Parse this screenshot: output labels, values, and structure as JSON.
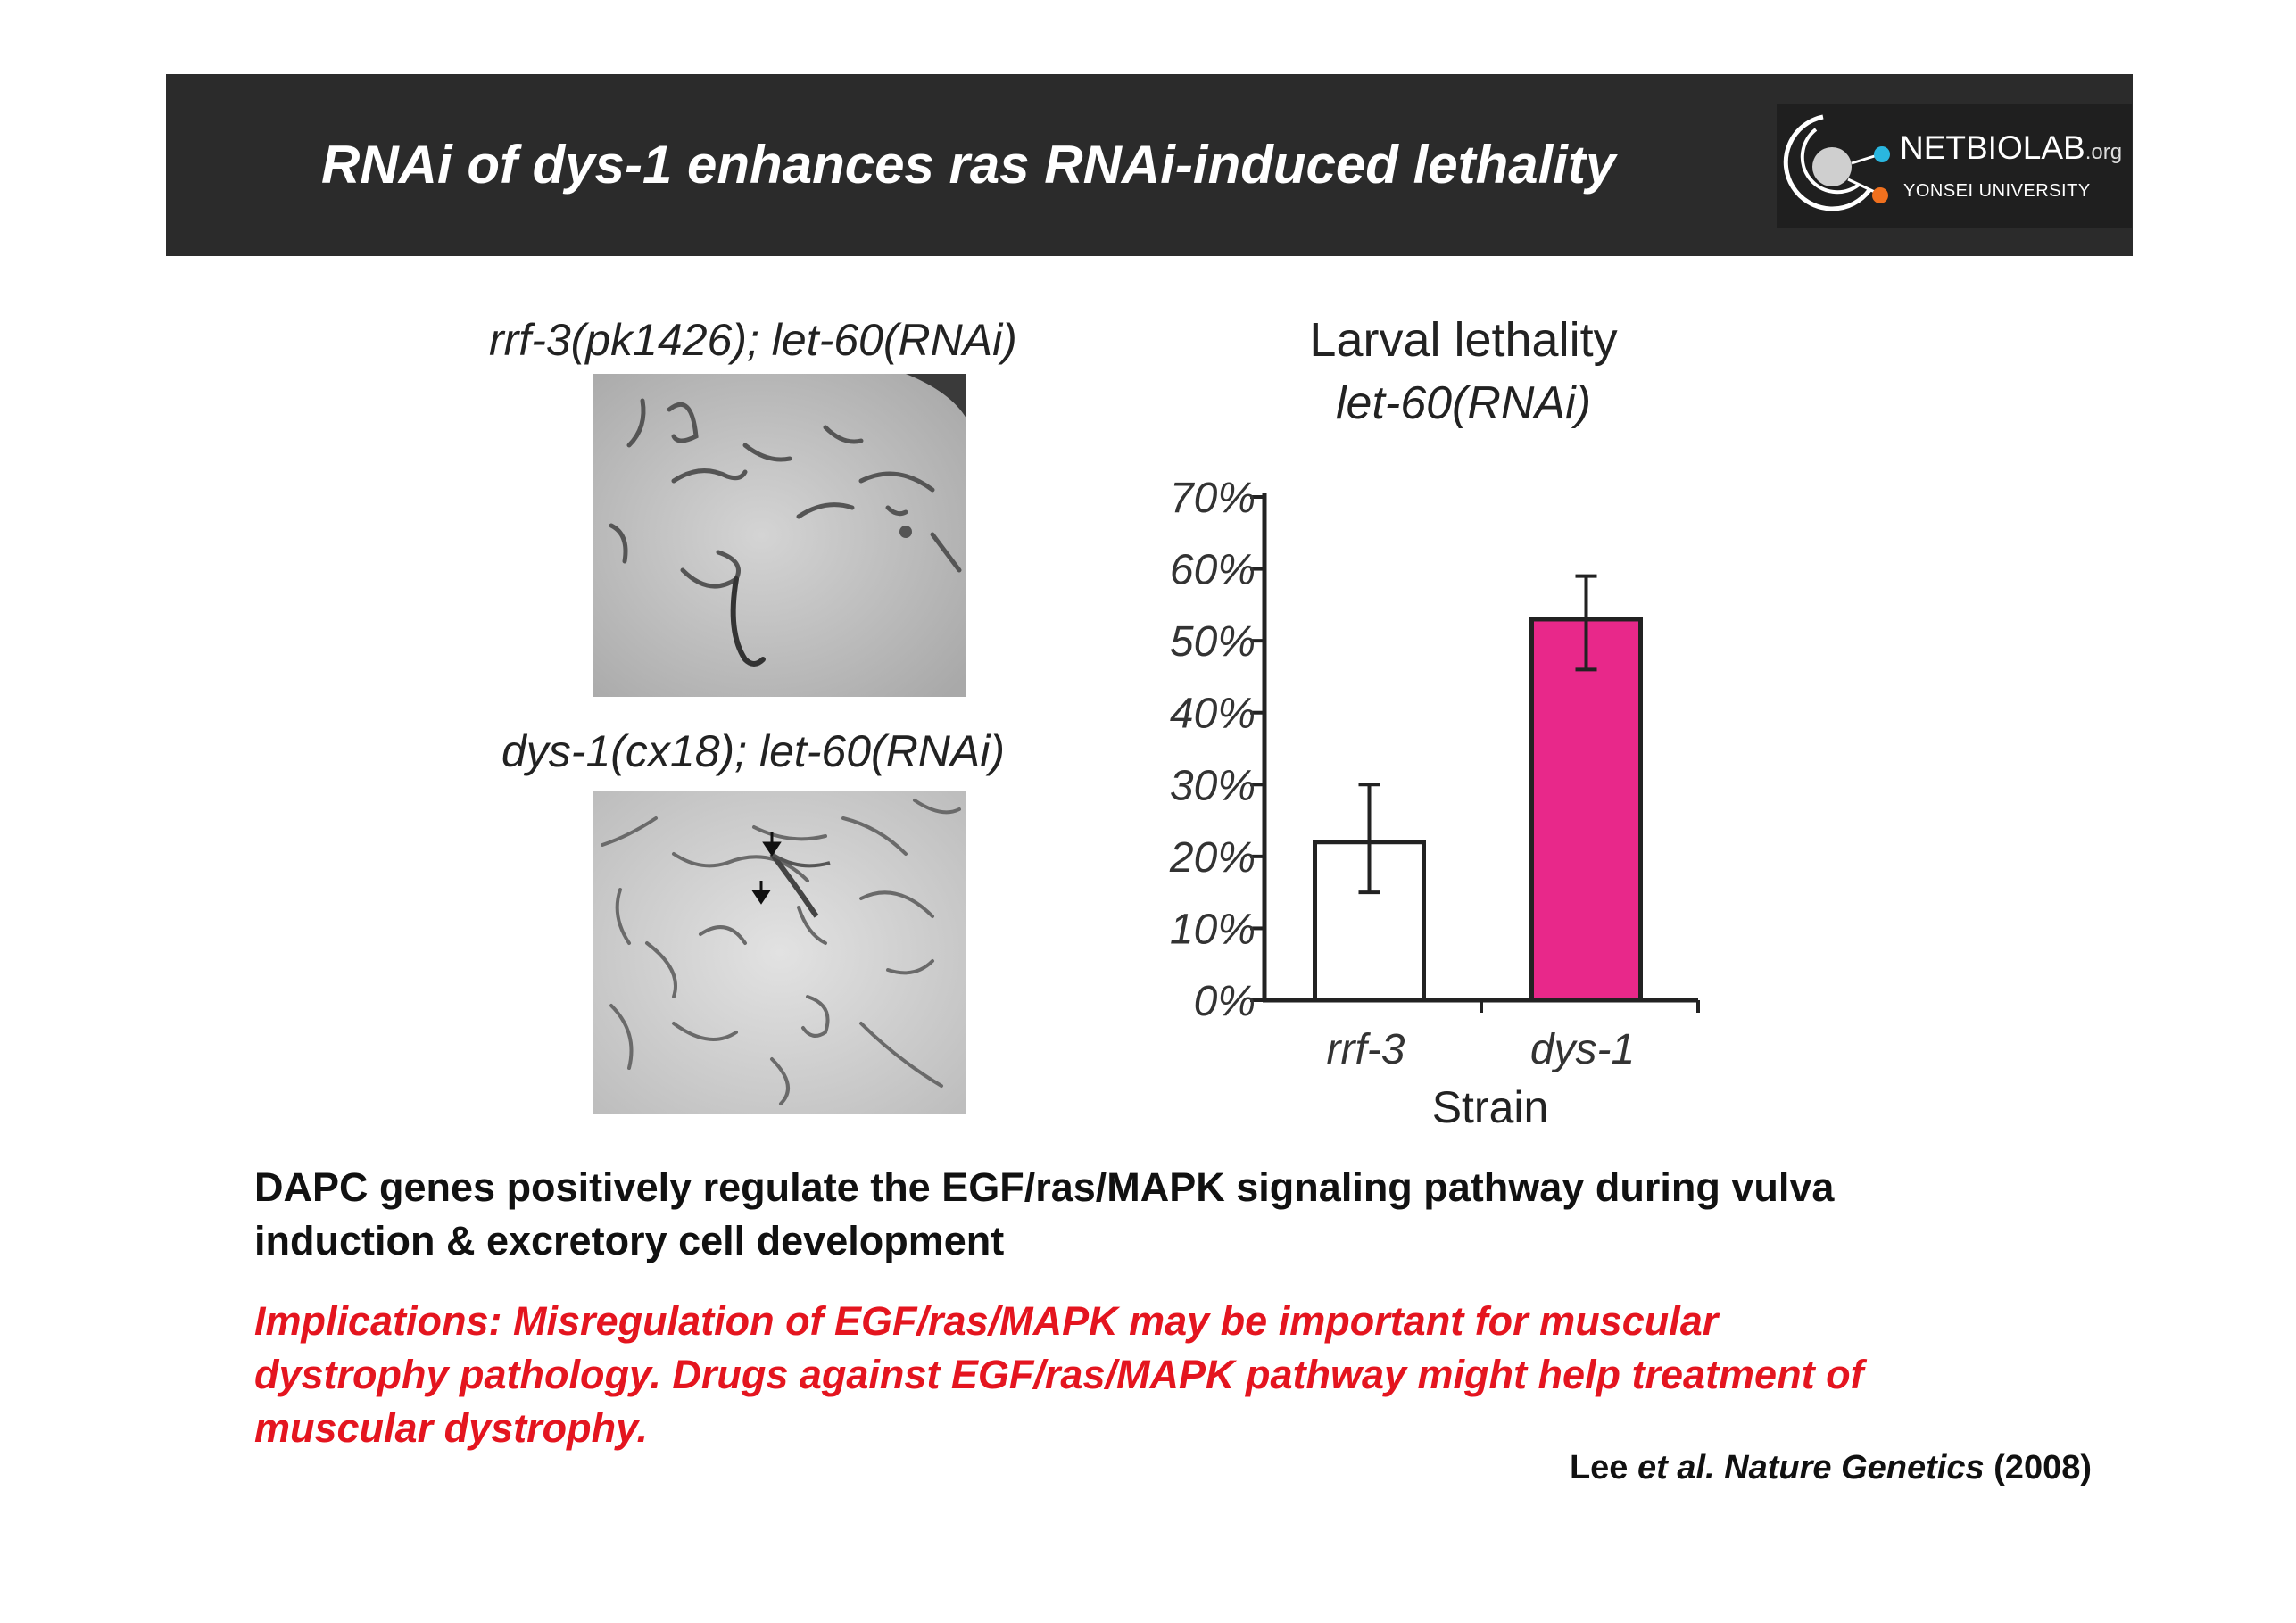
{
  "header": {
    "title": "RNAi of dys-1 enhances ras RNAi-induced lethality",
    "logo_name": "NETBIOLAB",
    "logo_suffix": ".org",
    "logo_sub": "YONSEI UNIVERSITY"
  },
  "panels": [
    {
      "label": "rrf-3(pk1426); let-60(RNAi)"
    },
    {
      "label": "dys-1(cx18); let-60(RNAi)"
    }
  ],
  "chart_data": {
    "type": "bar",
    "title": "Larval lethality",
    "subtitle": "let-60(RNAi)",
    "xlabel": "Strain",
    "ylabel": "",
    "categories": [
      "rrf-3",
      "dys-1"
    ],
    "values": [
      22,
      53
    ],
    "error": [
      [
        15,
        30
      ],
      [
        46,
        59
      ]
    ],
    "bar_colors": [
      "#ffffff",
      "#e8288a"
    ],
    "ylim": [
      0,
      70
    ],
    "yticks": [
      "0%",
      "10%",
      "20%",
      "30%",
      "40%",
      "50%",
      "60%",
      "70%"
    ],
    "grid": false,
    "legend": "none"
  },
  "body": {
    "line1": "DAPC genes positively regulate the EGF/ras/MAPK signaling pathway during vulva",
    "line2": "induction & excretory cell development",
    "implications": [
      "Implications:  Misregulation of EGF/ras/MAPK may be important for muscular",
      "dystrophy pathology.  Drugs against EGF/ras/MAPK pathway might help treatment of",
      "muscular dystrophy."
    ]
  },
  "citation": {
    "author": "Lee ",
    "etal": "et al. Nature Genetics",
    "year": " (2008)"
  },
  "colors": {
    "header_bg": "#2b2b2b",
    "accent_red": "#e4151f",
    "bar_magenta": "#e8288a"
  }
}
